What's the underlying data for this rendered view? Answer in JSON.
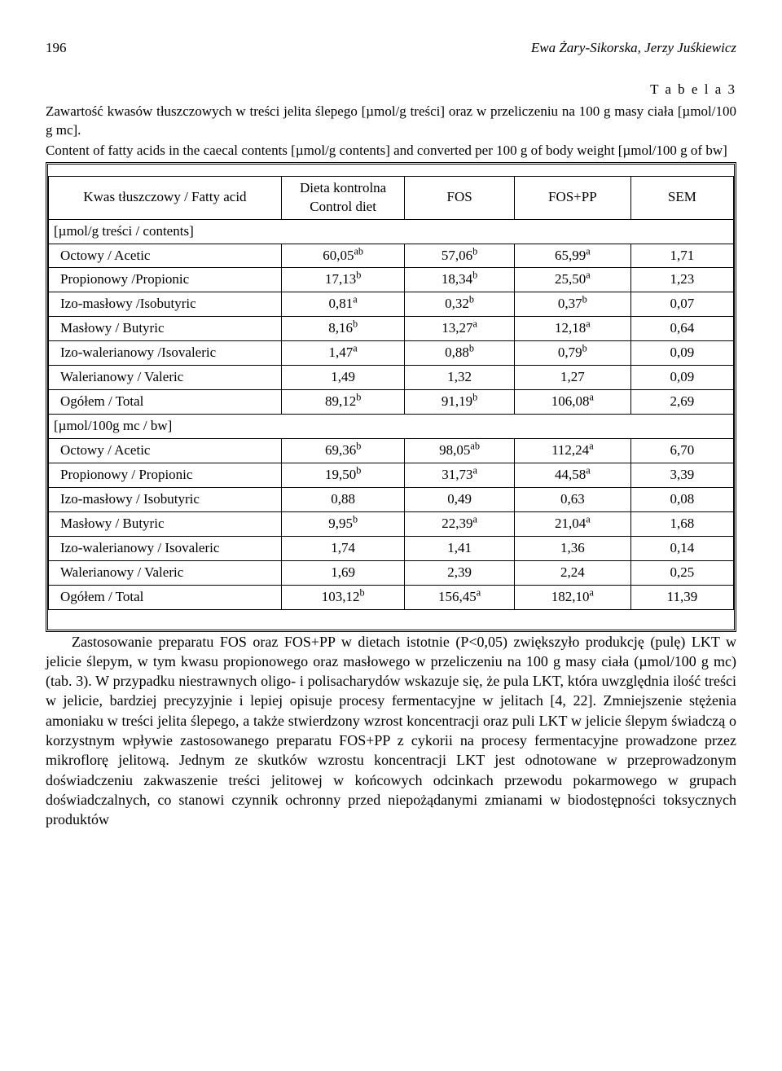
{
  "header": {
    "page": "196",
    "authors": "Ewa Żary-Sikorska, Jerzy Juśkiewicz"
  },
  "table": {
    "label": "T a b e l a   3",
    "caption_pl": "Zawartość kwasów tłuszczowych w treści jelita ślepego [µmol/g treści] oraz w przeliczeniu na 100 g masy ciała [µmol/100 g mc].",
    "caption_en": "Content of fatty acids in the caecal contents [µmol/g contents] and converted per 100 g of body weight [µmol/100 g of bw]",
    "head": {
      "c0": "Kwas tłuszczowy / Fatty acid",
      "c1a": "Dieta kontrolna",
      "c1b": "Control diet",
      "c2": "FOS",
      "c3": "FOS+PP",
      "c4": "SEM"
    },
    "section1": "[µmol/g treści / contents]",
    "rows1": [
      {
        "label": "Octowy / Acetic",
        "v1": "60,05",
        "s1": "ab",
        "v2": "57,06",
        "s2": "b",
        "v3": "65,99",
        "s3": "a",
        "v4": "1,71"
      },
      {
        "label": "Propionowy /Propionic",
        "v1": "17,13",
        "s1": "b",
        "v2": "18,34",
        "s2": "b",
        "v3": "25,50",
        "s3": "a",
        "v4": "1,23"
      },
      {
        "label": "Izo-masłowy /Isobutyric",
        "v1": "0,81",
        "s1": "a",
        "v2": "0,32",
        "s2": "b",
        "v3": "0,37",
        "s3": "b",
        "v4": "0,07"
      },
      {
        "label": "Masłowy / Butyric",
        "v1": "8,16",
        "s1": "b",
        "v2": "13,27",
        "s2": "a",
        "v3": "12,18",
        "s3": "a",
        "v4": "0,64"
      },
      {
        "label": "Izo-walerianowy /Isovaleric",
        "v1": "1,47",
        "s1": "a",
        "v2": "0,88",
        "s2": "b",
        "v3": "0,79",
        "s3": "b",
        "v4": "0,09"
      },
      {
        "label": "Walerianowy / Valeric",
        "v1": "1,49",
        "s1": "",
        "v2": "1,32",
        "s2": "",
        "v3": "1,27",
        "s3": "",
        "v4": "0,09"
      },
      {
        "label": "Ogółem / Total",
        "v1": "89,12",
        "s1": "b",
        "v2": "91,19",
        "s2": "b",
        "v3": "106,08",
        "s3": "a",
        "v4": "2,69"
      }
    ],
    "section2": "[µmol/100g mc / bw]",
    "rows2": [
      {
        "label": "Octowy / Acetic",
        "v1": "69,36",
        "s1": "b",
        "v2": "98,05",
        "s2": "ab",
        "v3": "112,24",
        "s3": "a",
        "v4": "6,70"
      },
      {
        "label": "Propionowy / Propionic",
        "v1": "19,50",
        "s1": "b",
        "v2": "31,73",
        "s2": "a",
        "v3": "44,58",
        "s3": "a",
        "v4": "3,39"
      },
      {
        "label": "Izo-masłowy / Isobutyric",
        "v1": "0,88",
        "s1": "",
        "v2": "0,49",
        "s2": "",
        "v3": "0,63",
        "s3": "",
        "v4": "0,08"
      },
      {
        "label": "Masłowy / Butyric",
        "v1": "9,95",
        "s1": "b",
        "v2": "22,39",
        "s2": "a",
        "v3": "21,04",
        "s3": "a",
        "v4": "1,68"
      },
      {
        "label": "Izo-walerianowy / Isovaleric",
        "v1": "1,74",
        "s1": "",
        "v2": "1,41",
        "s2": "",
        "v3": "1,36",
        "s3": "",
        "v4": "0,14"
      },
      {
        "label": "Walerianowy / Valeric",
        "v1": "1,69",
        "s1": "",
        "v2": "2,39",
        "s2": "",
        "v3": "2,24",
        "s3": "",
        "v4": "0,25"
      },
      {
        "label": "Ogółem / Total",
        "v1": "103,12",
        "s1": "b",
        "v2": "156,45",
        "s2": "a",
        "v3": "182,10",
        "s3": "a",
        "v4": "11,39"
      }
    ]
  },
  "paragraph": "Zastosowanie preparatu FOS oraz FOS+PP w dietach istotnie (P<0,05) zwiększyło produkcję (pulę) LKT w jelicie ślepym, w tym kwasu propionowego oraz masłowego w przeliczeniu na 100 g masy ciała (µmol/100 g mc) (tab. 3). W przypadku niestrawnych oligo- i polisacharydów wskazuje się, że pula LKT, która uwzględnia ilość treści w jelicie, bardziej precyzyjnie i lepiej opisuje procesy fermentacyjne w jelitach [4, 22]. Zmniejszenie stężenia amoniaku w treści jelita ślepego, a także stwierdzony wzrost koncentracji oraz puli LKT w jelicie ślepym świadczą o korzystnym wpływie zastosowanego preparatu FOS+PP z cykorii na procesy fermentacyjne prowadzone przez mikroflorę jelitową. Jednym ze skutków wzrostu koncentracji LKT jest odnotowane w przeprowadzonym doświadczeniu  zakwaszenie treści jelitowej w końcowych odcinkach przewodu pokarmowego w grupach doświadczalnych, co stanowi czynnik ochronny przed niepożądanymi zmianami w biodostępności toksycznych produktów"
}
